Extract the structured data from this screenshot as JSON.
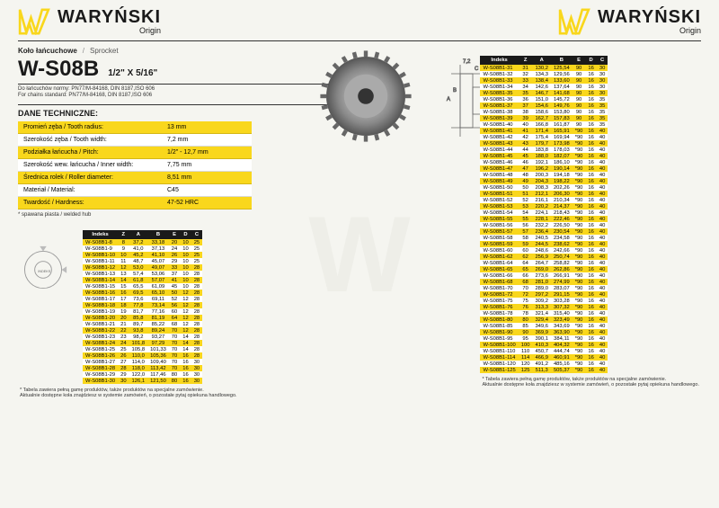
{
  "brand": {
    "name": "WARYŃSKI",
    "sub": "Origin"
  },
  "title": {
    "pl": "Koło łańcuchowe",
    "en": "Sprocket",
    "code": "W-S08B",
    "spec": "1/2\" X 5/16\""
  },
  "note": {
    "line1": "Do łańcuchów normy: PN77/M-84168, DIN 8187,ISO 606",
    "line2": "For chains standard: PN77/M-84168, DIN 8187,ISO 606"
  },
  "section_title": "DANE TECHNICZNE:",
  "specs": [
    {
      "label": "Promień zęba / Tooth radius:",
      "value": "13 mm"
    },
    {
      "label": "Szerokość zęba / Tooth width:",
      "value": "7,2 mm"
    },
    {
      "label": "Podziałka łańcucha / Pitch:",
      "value": "1/2\" - 12,7 mm"
    },
    {
      "label": "Szerokość wew. łańcucha / Inner width:",
      "value": "7,75 mm"
    },
    {
      "label": "Średnica rolek / Roller diameter:",
      "value": "8,51 mm"
    },
    {
      "label": "Materiał / Material:",
      "value": "C45"
    },
    {
      "label": "Twardość / Hardness:",
      "value": "47-52 HRC"
    }
  ],
  "spec_footnote": "* spawana piasta / welded hub",
  "columns": [
    "Indeks",
    "Z",
    "A",
    "B",
    "E",
    "D",
    "C"
  ],
  "table1": [
    [
      "W-S08B1-8",
      "8",
      "37,2",
      "33,18",
      "20",
      "10",
      "25"
    ],
    [
      "W-S08B1-9",
      "9",
      "41,0",
      "37,13",
      "24",
      "10",
      "25"
    ],
    [
      "W-S08B1-10",
      "10",
      "45,2",
      "41,10",
      "26",
      "10",
      "25"
    ],
    [
      "W-S08B1-11",
      "11",
      "48,7",
      "45,07",
      "29",
      "10",
      "25"
    ],
    [
      "W-S08B1-12",
      "12",
      "53,0",
      "49,07",
      "33",
      "10",
      "28"
    ],
    [
      "W-S08B1-13",
      "13",
      "57,4",
      "53,06",
      "37",
      "10",
      "28"
    ],
    [
      "W-S08B1-14",
      "14",
      "61,8",
      "57,07",
      "41",
      "10",
      "28"
    ],
    [
      "W-S08B1-15",
      "15",
      "65,5",
      "61,09",
      "45",
      "10",
      "28"
    ],
    [
      "W-S08B1-16",
      "16",
      "69,5",
      "65,10",
      "50",
      "12",
      "28"
    ],
    [
      "W-S08B1-17",
      "17",
      "73,6",
      "69,11",
      "52",
      "12",
      "28"
    ],
    [
      "W-S08B1-18",
      "18",
      "77,8",
      "73,14",
      "56",
      "12",
      "28"
    ],
    [
      "W-S08B1-19",
      "19",
      "81,7",
      "77,16",
      "60",
      "12",
      "28"
    ],
    [
      "W-S08B1-20",
      "20",
      "85,8",
      "81,19",
      "64",
      "12",
      "28"
    ],
    [
      "W-S08B1-21",
      "21",
      "89,7",
      "85,22",
      "68",
      "12",
      "28"
    ],
    [
      "W-S08B1-22",
      "22",
      "93,8",
      "89,24",
      "70",
      "12",
      "28"
    ],
    [
      "W-S08B1-23",
      "23",
      "98,2",
      "93,27",
      "70",
      "14",
      "28"
    ],
    [
      "W-S08B1-24",
      "24",
      "101,8",
      "97,29",
      "70",
      "14",
      "28"
    ],
    [
      "W-S08B1-25",
      "25",
      "105,8",
      "101,33",
      "70",
      "14",
      "28"
    ],
    [
      "W-S08B1-26",
      "26",
      "110,0",
      "105,36",
      "70",
      "16",
      "28"
    ],
    [
      "W-S08B1-27",
      "27",
      "114,0",
      "109,40",
      "70",
      "16",
      "30"
    ],
    [
      "W-S08B1-28",
      "28",
      "118,0",
      "113,42",
      "70",
      "16",
      "30"
    ],
    [
      "W-S08B1-29",
      "29",
      "122,0",
      "117,46",
      "80",
      "16",
      "30"
    ],
    [
      "W-S08B1-30",
      "30",
      "126,1",
      "121,50",
      "80",
      "16",
      "30"
    ]
  ],
  "table2": [
    [
      "W-S08B1-31",
      "31",
      "130,2",
      "125,54",
      "90",
      "16",
      "30"
    ],
    [
      "W-S08B1-32",
      "32",
      "134,3",
      "129,56",
      "90",
      "16",
      "30"
    ],
    [
      "W-S08B1-33",
      "33",
      "138,4",
      "133,60",
      "90",
      "16",
      "30"
    ],
    [
      "W-S08B1-34",
      "34",
      "142,6",
      "137,64",
      "90",
      "16",
      "30"
    ],
    [
      "W-S08B1-35",
      "35",
      "146,7",
      "141,68",
      "90",
      "16",
      "30"
    ],
    [
      "W-S08B1-36",
      "36",
      "151,0",
      "145,72",
      "90",
      "16",
      "35"
    ],
    [
      "W-S08B1-37",
      "37",
      "154,6",
      "149,76",
      "90",
      "16",
      "35"
    ],
    [
      "W-S08B1-38",
      "38",
      "158,6",
      "153,80",
      "90",
      "16",
      "35"
    ],
    [
      "W-S08B1-39",
      "39",
      "162,7",
      "157,83",
      "90",
      "16",
      "35"
    ],
    [
      "W-S08B1-40",
      "40",
      "166,8",
      "161,87",
      "90",
      "16",
      "35"
    ],
    [
      "W-S08B1-41",
      "41",
      "171,4",
      "165,91",
      "*90",
      "16",
      "40"
    ],
    [
      "W-S08B1-42",
      "42",
      "175,4",
      "169,94",
      "*90",
      "16",
      "40"
    ],
    [
      "W-S08B1-43",
      "43",
      "179,7",
      "173,98",
      "*90",
      "16",
      "40"
    ],
    [
      "W-S08B1-44",
      "44",
      "183,8",
      "178,03",
      "*90",
      "16",
      "40"
    ],
    [
      "W-S08B1-45",
      "45",
      "188,0",
      "182,07",
      "*90",
      "16",
      "40"
    ],
    [
      "W-S08B1-46",
      "46",
      "192,1",
      "186,10",
      "*90",
      "16",
      "40"
    ],
    [
      "W-S08B1-47",
      "47",
      "196,2",
      "190,14",
      "*90",
      "16",
      "40"
    ],
    [
      "W-S08B1-48",
      "48",
      "200,3",
      "194,18",
      "*90",
      "16",
      "40"
    ],
    [
      "W-S08B1-49",
      "49",
      "204,3",
      "198,22",
      "*90",
      "16",
      "40"
    ],
    [
      "W-S08B1-50",
      "50",
      "208,3",
      "202,26",
      "*90",
      "16",
      "40"
    ],
    [
      "W-S08B1-51",
      "51",
      "212,1",
      "206,30",
      "*90",
      "16",
      "40"
    ],
    [
      "W-S08B1-52",
      "52",
      "216,1",
      "210,34",
      "*90",
      "16",
      "40"
    ],
    [
      "W-S08B1-53",
      "53",
      "220,2",
      "214,37",
      "*90",
      "16",
      "40"
    ],
    [
      "W-S08B1-54",
      "54",
      "224,1",
      "218,43",
      "*90",
      "16",
      "40"
    ],
    [
      "W-S08B1-55",
      "55",
      "228,1",
      "222,46",
      "*90",
      "16",
      "40"
    ],
    [
      "W-S08B1-56",
      "56",
      "232,2",
      "226,50",
      "*90",
      "16",
      "40"
    ],
    [
      "W-S08B1-57",
      "57",
      "236,4",
      "230,54",
      "*90",
      "16",
      "40"
    ],
    [
      "W-S08B1-58",
      "58",
      "240,5",
      "234,58",
      "*90",
      "16",
      "40"
    ],
    [
      "W-S08B1-59",
      "59",
      "244,5",
      "238,62",
      "*90",
      "16",
      "40"
    ],
    [
      "W-S08B1-60",
      "60",
      "248,6",
      "242,66",
      "*90",
      "16",
      "40"
    ],
    [
      "W-S08B1-62",
      "62",
      "256,9",
      "250,74",
      "*90",
      "16",
      "40"
    ],
    [
      "W-S08B1-64",
      "64",
      "264,7",
      "258,82",
      "*90",
      "16",
      "40"
    ],
    [
      "W-S08B1-65",
      "65",
      "269,0",
      "262,86",
      "*90",
      "16",
      "40"
    ],
    [
      "W-S08B1-66",
      "66",
      "273,6",
      "266,91",
      "*90",
      "16",
      "40"
    ],
    [
      "W-S08B1-68",
      "68",
      "281,0",
      "274,99",
      "*90",
      "16",
      "40"
    ],
    [
      "W-S08B1-70",
      "70",
      "289,0",
      "283,07",
      "*90",
      "16",
      "40"
    ],
    [
      "W-S08B1-72",
      "72",
      "297,2",
      "291,15",
      "*90",
      "16",
      "40"
    ],
    [
      "W-S08B1-75",
      "75",
      "309,2",
      "303,28",
      "*90",
      "16",
      "40"
    ],
    [
      "W-S08B1-76",
      "76",
      "313,3",
      "307,32",
      "*90",
      "16",
      "40"
    ],
    [
      "W-S08B1-78",
      "78",
      "321,4",
      "315,40",
      "*90",
      "16",
      "40"
    ],
    [
      "W-S08B1-80",
      "80",
      "329,4",
      "323,49",
      "*90",
      "16",
      "40"
    ],
    [
      "W-S08B1-85",
      "85",
      "349,6",
      "343,69",
      "*90",
      "16",
      "40"
    ],
    [
      "W-S08B1-90",
      "90",
      "369,9",
      "363,90",
      "*90",
      "16",
      "40"
    ],
    [
      "W-S08B1-95",
      "95",
      "390,1",
      "384,11",
      "*90",
      "16",
      "40"
    ],
    [
      "W-S08B1-100",
      "100",
      "410,3",
      "404,32",
      "*90",
      "16",
      "40"
    ],
    [
      "W-S08B1-110",
      "110",
      "450,7",
      "444,74",
      "*90",
      "16",
      "40"
    ],
    [
      "W-S08B1-114",
      "114",
      "466,9",
      "460,91",
      "*90",
      "16",
      "40"
    ],
    [
      "W-S08B1-120",
      "120",
      "491,2",
      "485,16",
      "*90",
      "16",
      "40"
    ],
    [
      "W-S08B1-125",
      "125",
      "511,3",
      "505,37",
      "*90",
      "16",
      "40"
    ]
  ],
  "footer": "* Tabela zawiera pełną gamę produktów, także produktów na specjalne zamówienie.\nAktualnie dostępne koła znajdziesz w systemie zamówień, o pozostałe pytaj opiekuna handlowego.",
  "colors": {
    "yellow": "#f9d71c",
    "dark": "#1a1a1a",
    "bg": "#f5f5f0"
  }
}
